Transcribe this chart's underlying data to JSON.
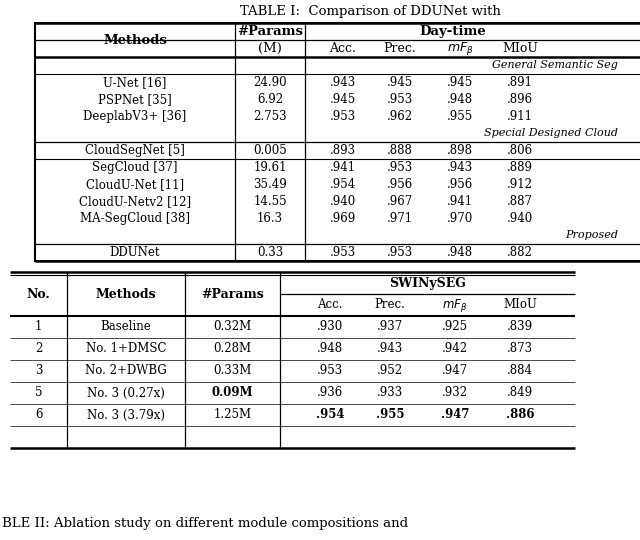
{
  "title_top": "TABLE I:  Comparison of DDUNet with",
  "title_bottom": "BLE II: Ablation study on different module compositions and",
  "table1": {
    "section1_label": "General Semantic Seg",
    "section1_rows": [
      [
        "U-Net [16]",
        "24.90",
        ".943",
        ".945",
        ".945",
        ".891"
      ],
      [
        "PSPNet [35]",
        "6.92",
        ".945",
        ".953",
        ".948",
        ".896"
      ],
      [
        "DeeplabV3+ [36]",
        "2.753",
        ".953",
        ".962",
        ".955",
        ".911"
      ]
    ],
    "section2_label": "Special Designed Cloud",
    "section2_rows": [
      [
        "CloudSegNet [5]",
        "0.005",
        ".893",
        ".888",
        ".898",
        ".806"
      ],
      [
        "SegCloud [37]",
        "19.61",
        ".941",
        ".953",
        ".943",
        ".889"
      ],
      [
        "CloudU-Net [11]",
        "35.49",
        ".954",
        ".956",
        ".956",
        ".912"
      ],
      [
        "CloudU-Netv2 [12]",
        "14.55",
        ".940",
        ".967",
        ".941",
        ".887"
      ],
      [
        "MA-SegCloud [38]",
        "16.3",
        ".969",
        ".971",
        ".970",
        ".940"
      ]
    ],
    "section3_label": "Proposed",
    "section3_rows": [
      [
        "DDUNet",
        "0.33",
        ".953",
        ".953",
        ".948",
        ".882"
      ]
    ]
  },
  "table2": {
    "rows": [
      [
        "1",
        "Baseline",
        "0.32M",
        ".930",
        ".937",
        ".925",
        ".839"
      ],
      [
        "2",
        "No. 1+DMSC",
        "0.28M",
        ".948",
        ".943",
        ".942",
        ".873"
      ],
      [
        "3",
        "No. 2+DWBG",
        "0.33M",
        ".953",
        ".952",
        ".947",
        ".884"
      ],
      [
        "5",
        "No. 3 (0.27x)",
        "0.09M",
        ".936",
        ".933",
        ".932",
        ".849"
      ],
      [
        "6",
        "No. 3 (3.79x)",
        "1.25M",
        ".954",
        ".955",
        ".947",
        ".886"
      ]
    ],
    "bold_params": [
      3
    ],
    "bold_values": [
      4
    ]
  },
  "bg_color": "#ffffff",
  "text_color": "#000000"
}
